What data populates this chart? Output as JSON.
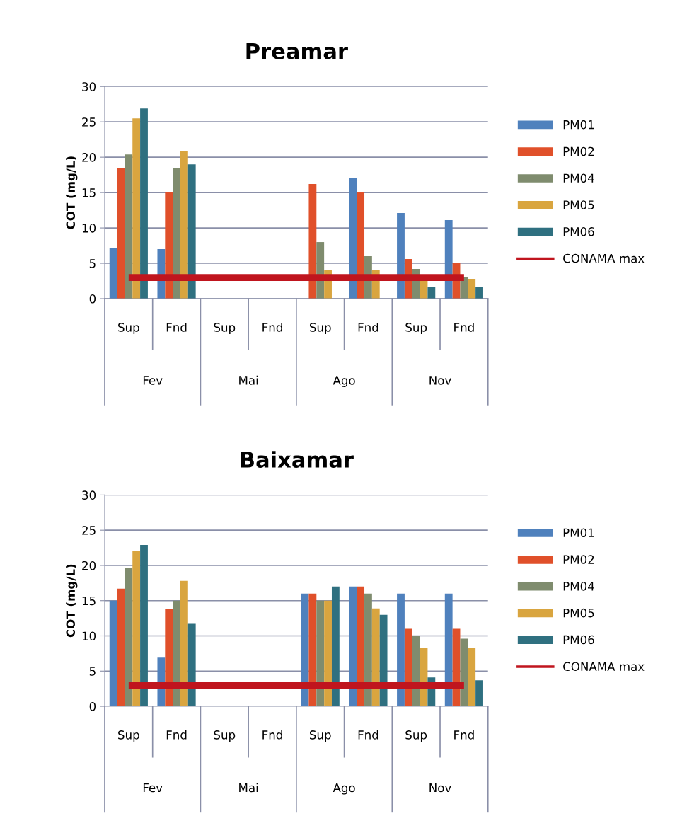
{
  "chart_data": [
    {
      "type": "bar",
      "title": "Preamar",
      "ylabel": "COT (mg/L)",
      "categories": [
        "Sup",
        "Fnd",
        "Sup",
        "Fnd",
        "Sup",
        "Fnd",
        "Sup",
        "Fnd"
      ],
      "annotations": [
        "Fev",
        "Mai",
        "Ago",
        "Nov"
      ],
      "ylim": [
        0,
        30
      ],
      "yticks": [
        0,
        5,
        10,
        15,
        20,
        25,
        30
      ],
      "grid": "y",
      "legend": "right",
      "series": [
        {
          "name": "PM01",
          "color": "#4f81bd",
          "values": [
            7.2,
            7.0,
            null,
            null,
            null,
            17.1,
            12.1,
            11.1
          ]
        },
        {
          "name": "PM02",
          "color": "#e0502a",
          "values": [
            18.5,
            15.1,
            null,
            null,
            16.2,
            15.1,
            5.6,
            5.0
          ]
        },
        {
          "name": "PM04",
          "color": "#7f8c6e",
          "values": [
            20.4,
            18.5,
            null,
            null,
            8.0,
            6.0,
            4.2,
            3.0
          ]
        },
        {
          "name": "PM05",
          "color": "#d9a53f",
          "values": [
            25.5,
            20.9,
            null,
            null,
            4.0,
            4.0,
            2.7,
            2.8
          ]
        },
        {
          "name": "PM06",
          "color": "#2f7080",
          "values": [
            26.9,
            19.0,
            null,
            null,
            null,
            null,
            1.6,
            1.6
          ]
        },
        {
          "name": "CONAMA max",
          "color": "#c0151e",
          "type": "line",
          "values": [
            3,
            3,
            3,
            3,
            3,
            3,
            3,
            3
          ]
        }
      ]
    },
    {
      "type": "bar",
      "title": "Baixamar",
      "ylabel": "COT (mg/L)",
      "categories": [
        "Sup",
        "Fnd",
        "Sup",
        "Fnd",
        "Sup",
        "Fnd",
        "Sup",
        "Fnd"
      ],
      "annotations": [
        "Fev",
        "Mai",
        "Ago",
        "Nov"
      ],
      "ylim": [
        0,
        30
      ],
      "yticks": [
        0,
        5,
        10,
        15,
        20,
        25,
        30
      ],
      "grid": "y",
      "legend": "right",
      "series": [
        {
          "name": "PM01",
          "color": "#4f81bd",
          "values": [
            15.0,
            6.9,
            null,
            null,
            16.0,
            17.0,
            16.0,
            16.0
          ]
        },
        {
          "name": "PM02",
          "color": "#e0502a",
          "values": [
            16.7,
            13.8,
            null,
            null,
            16.0,
            17.0,
            11.0,
            11.0
          ]
        },
        {
          "name": "PM04",
          "color": "#7f8c6e",
          "values": [
            19.6,
            15.0,
            null,
            null,
            15.0,
            16.0,
            10.0,
            9.6
          ]
        },
        {
          "name": "PM05",
          "color": "#d9a53f",
          "values": [
            22.1,
            17.8,
            null,
            null,
            15.0,
            13.9,
            8.3,
            8.3
          ]
        },
        {
          "name": "PM06",
          "color": "#2f7080",
          "values": [
            22.9,
            11.8,
            null,
            null,
            17.0,
            13.0,
            4.1,
            3.7
          ]
        },
        {
          "name": "CONAMA max",
          "color": "#c0151e",
          "type": "line",
          "values": [
            3,
            3,
            3,
            3,
            3,
            3,
            3,
            3
          ]
        }
      ]
    }
  ]
}
